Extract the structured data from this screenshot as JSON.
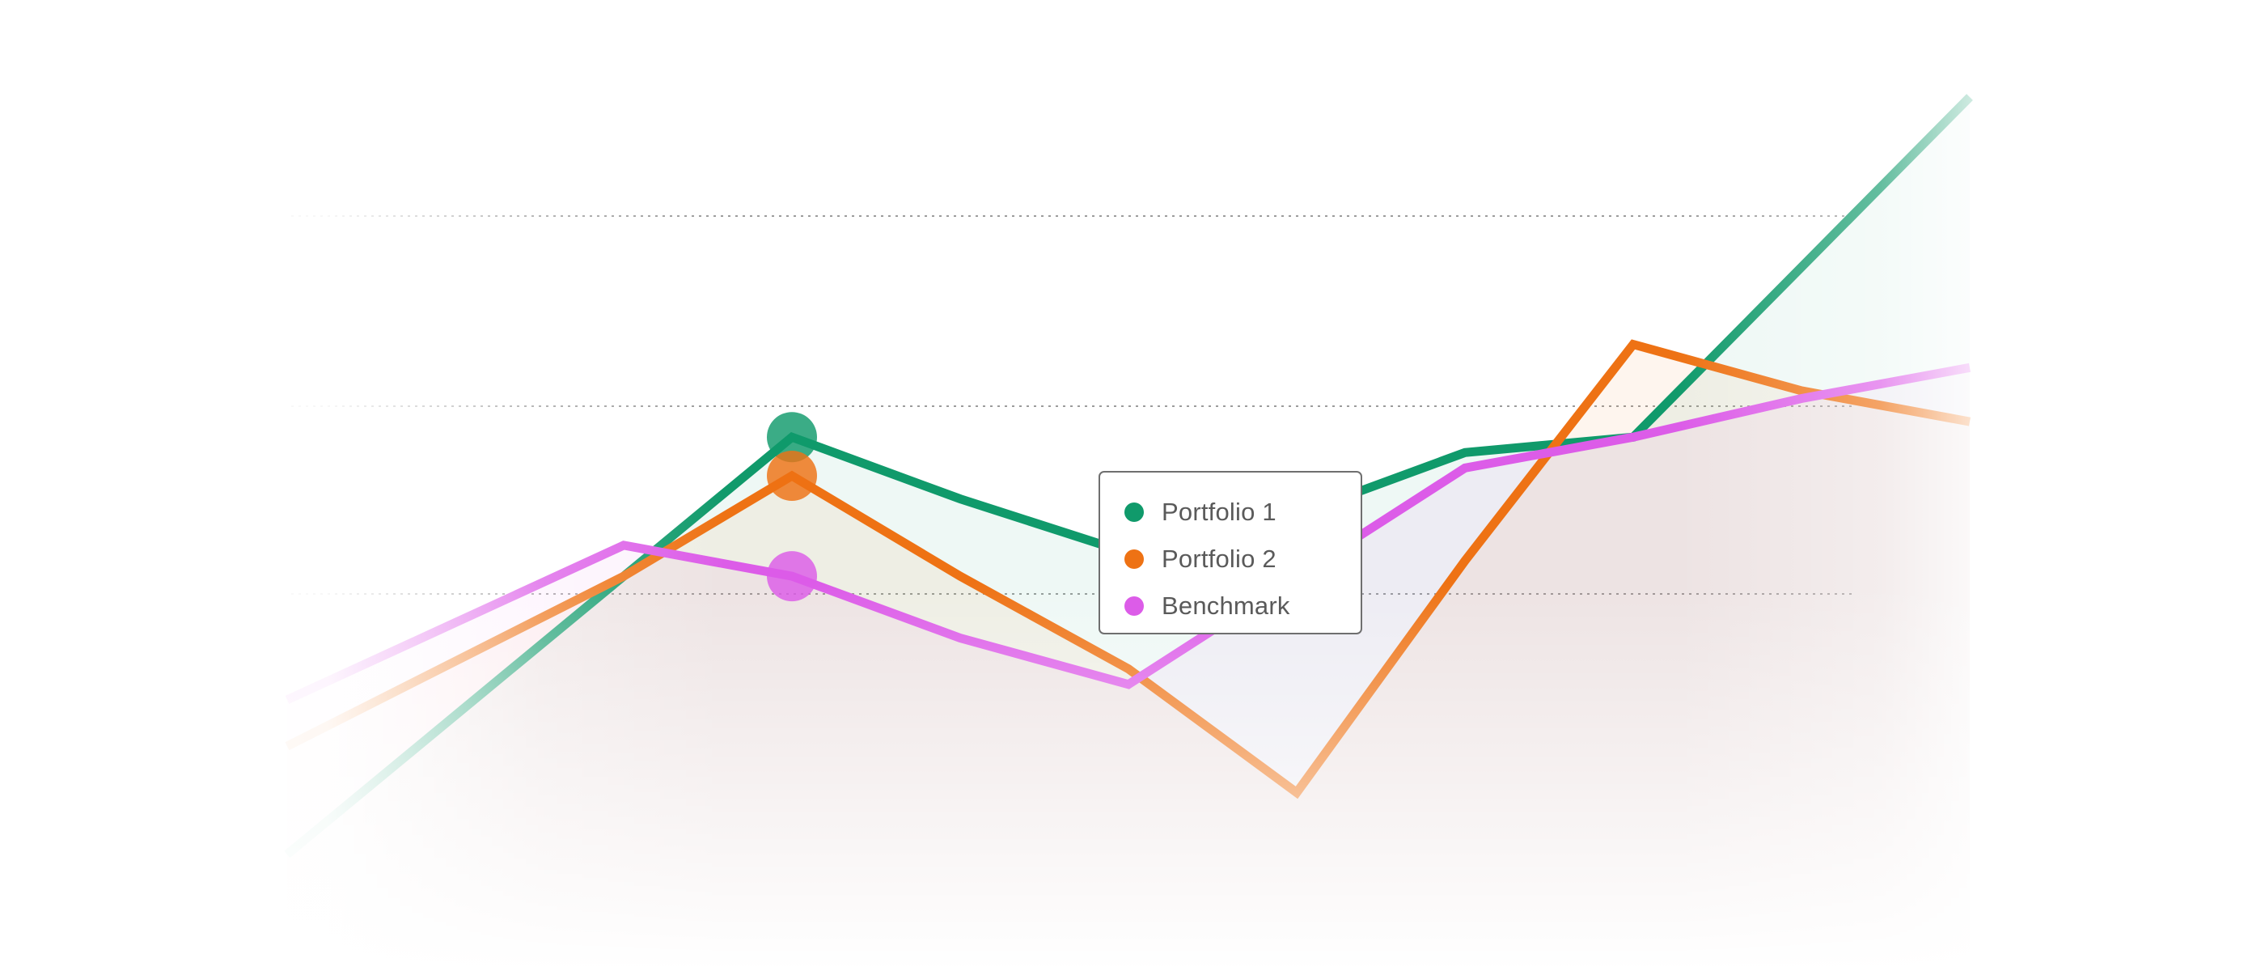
{
  "chart_data": {
    "type": "line",
    "title": "",
    "xlabel": "",
    "ylabel": "",
    "x": [
      1,
      2,
      3,
      4,
      5,
      6,
      7,
      8,
      9,
      10,
      11
    ],
    "xlim": [
      1,
      11
    ],
    "ylim": [
      0,
      100
    ],
    "grid": "dotted-horizontal",
    "hover_index": 3,
    "series": [
      {
        "name": "Portfolio 1",
        "color": "#109a6b",
        "values": [
          2,
          20,
          38,
          56,
          48,
          41,
          46,
          54,
          56,
          78,
          100
        ]
      },
      {
        "name": "Portfolio 2",
        "color": "#ee7214",
        "values": [
          16,
          27,
          38,
          51,
          38,
          26,
          10,
          40,
          68,
          62,
          58
        ]
      },
      {
        "name": "Benchmark",
        "color": "#dc5ce8",
        "values": [
          22,
          32,
          42,
          38,
          30,
          24,
          38,
          52,
          56,
          61,
          65
        ]
      }
    ],
    "tooltip": {
      "items": [
        "Portfolio 1",
        "Portfolio 2",
        "Benchmark"
      ]
    },
    "legend": "tooltip"
  }
}
